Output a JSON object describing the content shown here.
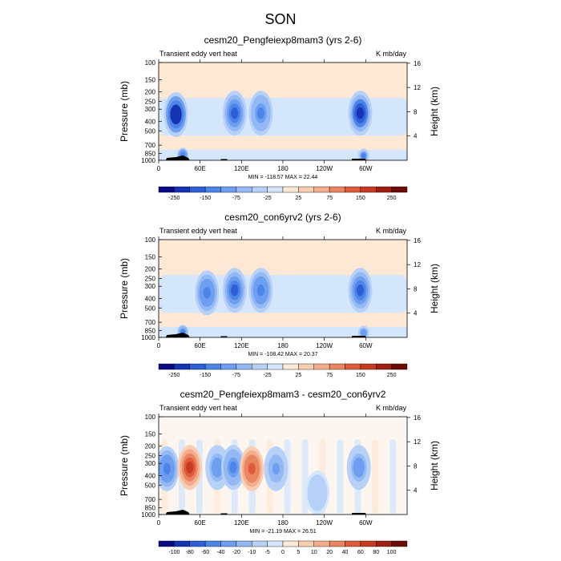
{
  "figure_title": "SON",
  "chart_data": [
    {
      "type": "heatmap",
      "title": "cesm20_Pengfeiexp8mam3 (yrs 2-6)",
      "left_label": "Transient eddy vert heat",
      "right_label": "K mb/day",
      "ylabel": "Pressure (mb)",
      "y2label": "Height (km)",
      "x_ticks": [
        "0",
        "60E",
        "120E",
        "180",
        "120W",
        "60W"
      ],
      "y_ticks": [
        "100",
        "150",
        "200",
        "250",
        "300",
        "400",
        "500",
        "700",
        "850",
        "1000"
      ],
      "y2_ticks": [
        "16",
        "12",
        "8",
        "4"
      ],
      "min_max_text": "MIN = -118.57  MAX = 22.44",
      "colorbar_labels": [
        "-250",
        "-150",
        "-75",
        "-25",
        "25",
        "75",
        "150",
        "250"
      ],
      "colors": [
        "#0a0a82",
        "#1633b4",
        "#2f5fd6",
        "#4d84e8",
        "#6e9ef0",
        "#93b8f4",
        "#b6d0f8",
        "#d4e6fb",
        "#fde8d6",
        "#f8cdb2",
        "#f3ad8c",
        "#ea8562",
        "#dd5a3a",
        "#c63b22",
        "#9e2010",
        "#6b0d06"
      ],
      "features": [
        {
          "lon": 25,
          "p": 340,
          "amp": -1.0
        },
        {
          "lon": 110,
          "p": 330,
          "amp": -0.75
        },
        {
          "lon": 148,
          "p": 330,
          "amp": -0.55
        },
        {
          "lon": 292,
          "p": 330,
          "amp": -0.85
        },
        {
          "lon": 35,
          "p": 880,
          "amp": -0.6
        },
        {
          "lon": 297,
          "p": 900,
          "amp": -0.5
        }
      ]
    },
    {
      "type": "heatmap",
      "title": "cesm20_con6yrv2 (yrs 2-6)",
      "left_label": "Transient eddy vert heat",
      "right_label": "K mb/day",
      "ylabel": "Pressure (mb)",
      "y2label": "Height (km)",
      "x_ticks": [
        "0",
        "60E",
        "120E",
        "180",
        "120W",
        "60W"
      ],
      "y_ticks": [
        "100",
        "150",
        "200",
        "250",
        "300",
        "400",
        "500",
        "700",
        "850",
        "1000"
      ],
      "y2_ticks": [
        "16",
        "12",
        "8",
        "4"
      ],
      "min_max_text": "MIN = -108.42  MAX = 20.37",
      "colorbar_labels": [
        "-250",
        "-150",
        "-75",
        "-25",
        "25",
        "75",
        "150",
        "250"
      ],
      "colors": [
        "#0a0a82",
        "#1633b4",
        "#2f5fd6",
        "#4d84e8",
        "#6e9ef0",
        "#93b8f4",
        "#b6d0f8",
        "#d4e6fb",
        "#fde8d6",
        "#f8cdb2",
        "#f3ad8c",
        "#ea8562",
        "#dd5a3a",
        "#c63b22",
        "#9e2010",
        "#6b0d06"
      ],
      "features": [
        {
          "lon": 70,
          "p": 350,
          "amp": -0.6
        },
        {
          "lon": 110,
          "p": 330,
          "amp": -0.75
        },
        {
          "lon": 148,
          "p": 330,
          "amp": -0.6
        },
        {
          "lon": 292,
          "p": 330,
          "amp": -0.7
        },
        {
          "lon": 35,
          "p": 880,
          "amp": -0.55
        },
        {
          "lon": 297,
          "p": 900,
          "amp": -0.45
        }
      ]
    },
    {
      "type": "heatmap",
      "title": "cesm20_Pengfeiexp8mam3 - cesm20_con6yrv2",
      "left_label": "Transient eddy vert heat",
      "right_label": "K mb/day",
      "ylabel": "Pressure (mb)",
      "y2label": "Height (km)",
      "x_ticks": [
        "0",
        "60E",
        "120E",
        "180",
        "120W",
        "60W"
      ],
      "y_ticks": [
        "100",
        "150",
        "200",
        "250",
        "300",
        "400",
        "500",
        "700",
        "850",
        "1000"
      ],
      "y2_ticks": [
        "16",
        "12",
        "8",
        "4"
      ],
      "min_max_text": "MIN = -21.19  MAX = 26.51",
      "colorbar_labels": [
        "-100",
        "-80",
        "-60",
        "-40",
        "-20",
        "-10",
        "-5",
        "0",
        "5",
        "10",
        "20",
        "40",
        "60",
        "80",
        "100"
      ],
      "colors": [
        "#0a0a82",
        "#1633b4",
        "#2f5fd6",
        "#4d84e8",
        "#6e9ef0",
        "#93b8f4",
        "#b6d0f8",
        "#d4e6fb",
        "#fde8d6",
        "#f8cdb2",
        "#f3ad8c",
        "#ea8562",
        "#dd5a3a",
        "#c63b22",
        "#9e2010",
        "#6b0d06"
      ],
      "features": [
        {
          "lon": 12,
          "p": 340,
          "amp": -0.6
        },
        {
          "lon": 45,
          "p": 330,
          "amp": 0.75
        },
        {
          "lon": 85,
          "p": 330,
          "amp": -0.45
        },
        {
          "lon": 108,
          "p": 330,
          "amp": -0.55
        },
        {
          "lon": 135,
          "p": 340,
          "amp": 0.6
        },
        {
          "lon": 170,
          "p": 340,
          "amp": -0.4
        },
        {
          "lon": 290,
          "p": 330,
          "amp": -0.45
        },
        {
          "lon": 230,
          "p": 600,
          "amp": -0.2
        }
      ]
    }
  ]
}
